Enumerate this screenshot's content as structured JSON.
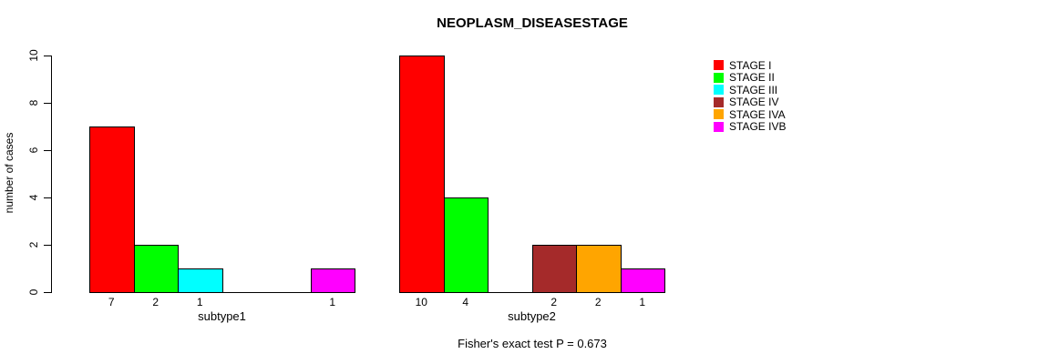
{
  "chart_data": {
    "type": "bar",
    "title": "NEOPLASM_DISEASESTAGE",
    "ylabel": "number of cases",
    "xlabel": "",
    "ylim": [
      0,
      10
    ],
    "yticks": [
      0,
      2,
      4,
      6,
      8,
      10
    ],
    "grid": false,
    "legend_position": "right",
    "categories": [
      "subtype1",
      "subtype2"
    ],
    "series": [
      {
        "name": "STAGE I",
        "color": "#FF0000",
        "values": [
          7,
          10
        ]
      },
      {
        "name": "STAGE II",
        "color": "#00FF00",
        "values": [
          2,
          4
        ]
      },
      {
        "name": "STAGE III",
        "color": "#00FFFF",
        "values": [
          1,
          0
        ]
      },
      {
        "name": "STAGE IV",
        "color": "#A52A2A",
        "values": [
          0,
          2
        ]
      },
      {
        "name": "STAGE IVA",
        "color": "#FFA500",
        "values": [
          0,
          2
        ]
      },
      {
        "name": "STAGE IVB",
        "color": "#FF00FF",
        "values": [
          1,
          1
        ]
      }
    ],
    "bar_value_labels_shown": true,
    "annotation": "Fisher's exact test P = 0.673"
  },
  "colors": {
    "background": "#FFFFFF",
    "axis": "#000000",
    "text": "#000000"
  }
}
